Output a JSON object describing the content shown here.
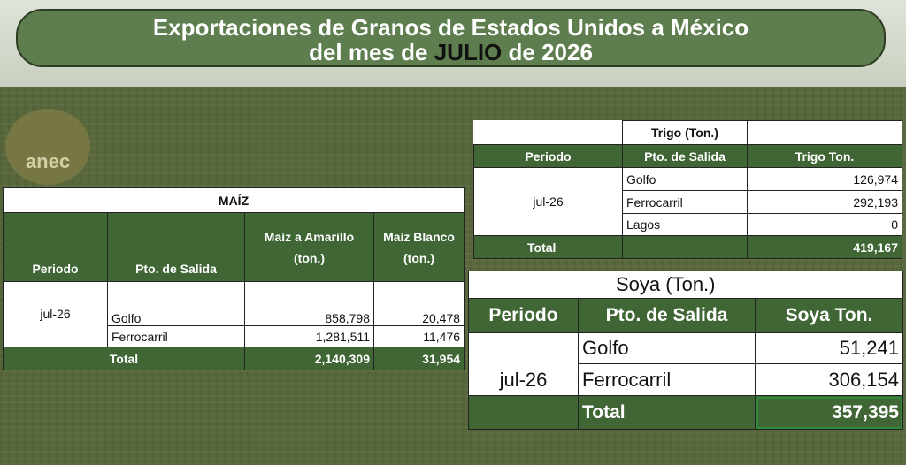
{
  "header": {
    "title_line1": "Exportaciones de Granos de Estados Unidos a México",
    "title_line2_start": "del mes de",
    "title_month": "JULIO",
    "title_line2_end": "de 2026",
    "logo": "anec"
  },
  "maiz": {
    "title": "MAÍZ",
    "headers": [
      "Periodo",
      "Pto. de Salida",
      "Maíz a Amarillo (ton.)",
      "Maíz Blanco (ton.)"
    ],
    "period": "jul-26",
    "rows": [
      [
        "Golfo",
        "858,798",
        "20,478"
      ],
      [
        "Ferrocarril",
        "1,281,511",
        "11,476"
      ]
    ],
    "total": [
      "Total",
      "2,140,309",
      "31,954"
    ]
  },
  "trigo": {
    "title": "Trigo (Ton.)",
    "headers": [
      "Periodo",
      "Pto. de Salida",
      "Trigo Ton."
    ],
    "period": "jul-26",
    "rows": [
      [
        "Golfo",
        "126,974"
      ],
      [
        "Ferrocarril",
        "292,193"
      ],
      [
        "Lagos",
        "0"
      ]
    ],
    "total": [
      "Total",
      "419,167"
    ]
  },
  "soya": {
    "title": "Soya  (Ton.)",
    "headers": [
      "Periodo",
      "Pto. de Salida",
      "Soya Ton."
    ],
    "period": "jul-26",
    "rows": [
      [
        "Golfo",
        "51,241"
      ],
      [
        "Ferrocarril",
        "306,154"
      ]
    ],
    "total": [
      "Total",
      "357,395"
    ]
  }
}
